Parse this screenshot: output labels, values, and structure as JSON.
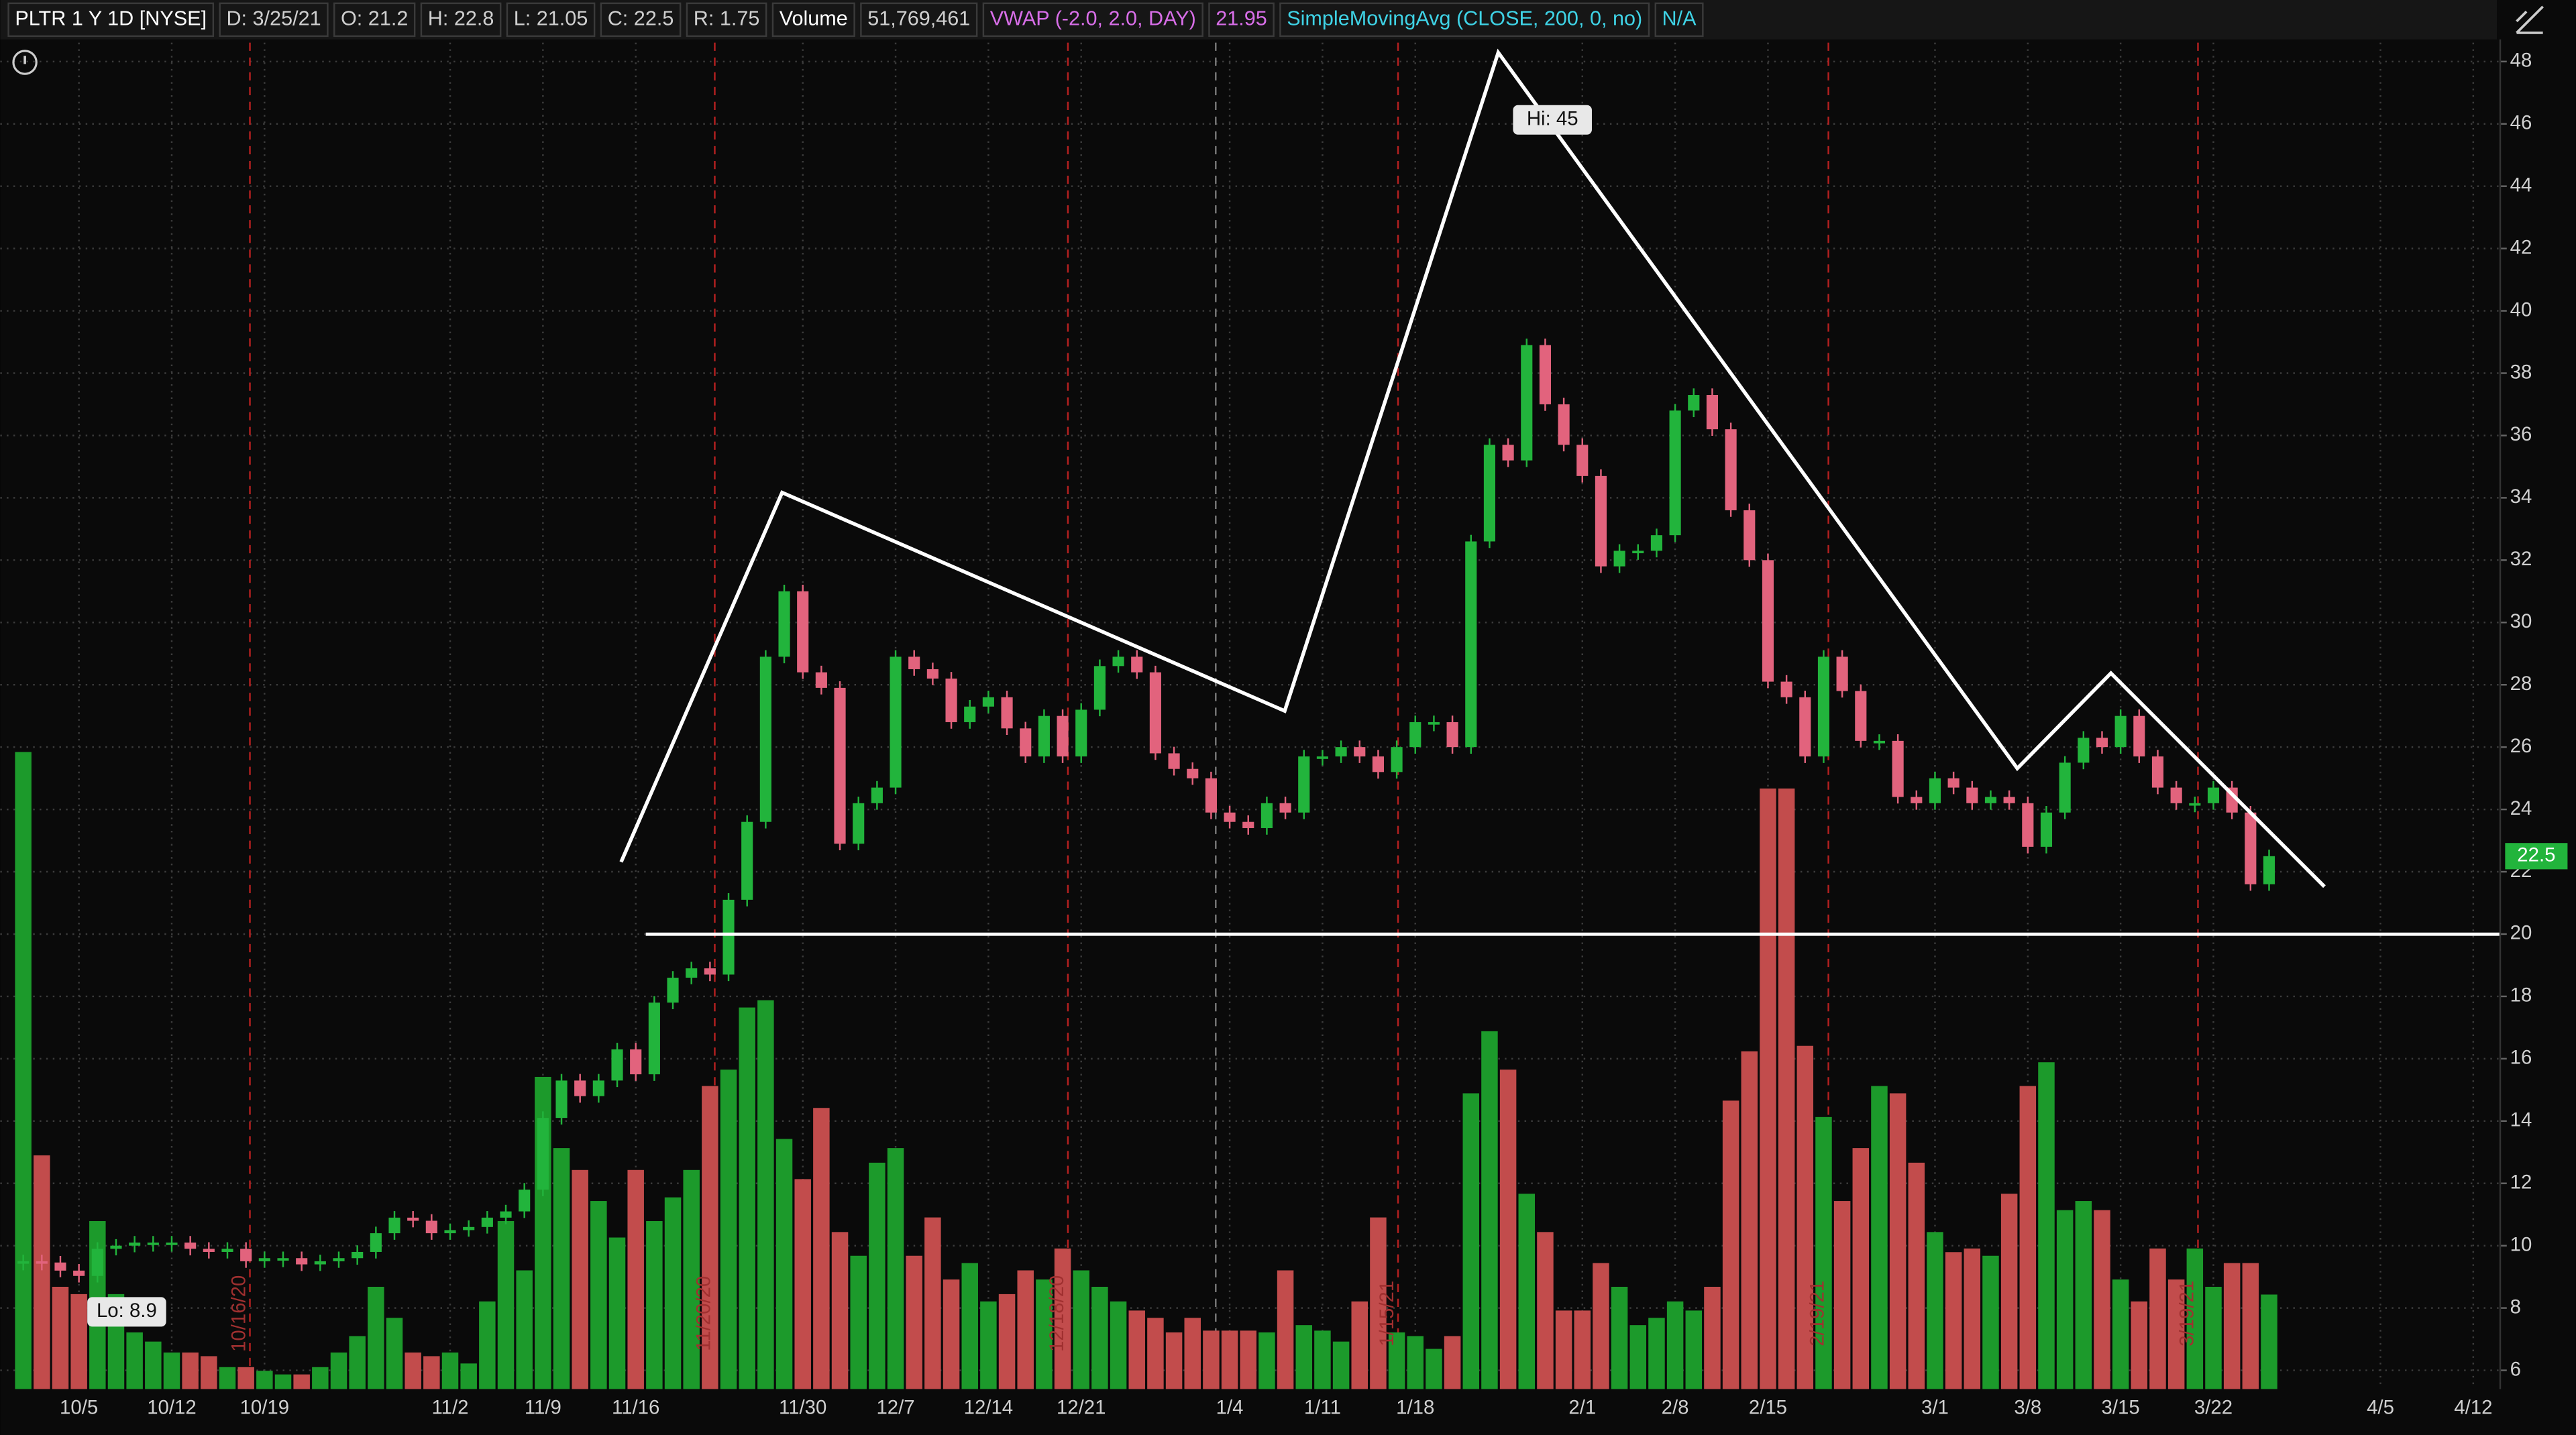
{
  "header": [
    {
      "text": "PLTR 1 Y 1D [NYSE]",
      "color": "#ffffff"
    },
    {
      "text": "D: 3/25/21",
      "color": "#cfcfcf"
    },
    {
      "text": "O: 21.2",
      "color": "#cfcfcf"
    },
    {
      "text": "H: 22.8",
      "color": "#cfcfcf"
    },
    {
      "text": "L: 21.05",
      "color": "#cfcfcf"
    },
    {
      "text": "C: 22.5",
      "color": "#cfcfcf"
    },
    {
      "text": "R: 1.75",
      "color": "#cfcfcf"
    },
    {
      "text": "Volume",
      "color": "#ffffff"
    },
    {
      "text": "51,769,461",
      "color": "#cfcfcf"
    },
    {
      "text": "VWAP (-2.0, 2.0, DAY)",
      "color": "#d86ee8"
    },
    {
      "text": "21.95",
      "color": "#d86ee8"
    },
    {
      "text": "SimpleMovingAvg (CLOSE, 200, 0, no)",
      "color": "#3fd3e6"
    },
    {
      "text": "N/A",
      "color": "#3fd3e6"
    }
  ],
  "chart_data": {
    "type": "candlestick",
    "categories": [
      null,
      null,
      null,
      "10/5",
      null,
      null,
      null,
      null,
      "10/12",
      null,
      null,
      null,
      null,
      "10/19",
      null,
      null,
      null,
      null,
      null,
      null,
      null,
      null,
      null,
      "11/2",
      null,
      null,
      null,
      null,
      "11/9",
      null,
      null,
      null,
      null,
      "11/16",
      null,
      null,
      null,
      null,
      null,
      null,
      null,
      null,
      "11/30",
      null,
      null,
      null,
      null,
      "12/7",
      null,
      null,
      null,
      null,
      "12/14",
      null,
      null,
      null,
      null,
      "12/21",
      null,
      null,
      null,
      null,
      null,
      null,
      null,
      "1/4",
      null,
      null,
      null,
      null,
      "1/11",
      null,
      null,
      null,
      null,
      "1/18",
      null,
      null,
      null,
      null,
      null,
      null,
      null,
      null,
      "2/1",
      null,
      null,
      null,
      null,
      "2/8",
      null,
      null,
      null,
      null,
      "2/15",
      null,
      null,
      null,
      null,
      null,
      null,
      null,
      null,
      "3/1",
      null,
      null,
      null,
      null,
      "3/8",
      null,
      null,
      null,
      null,
      "3/15",
      null,
      null,
      null,
      null,
      "3/22",
      null,
      null,
      null,
      null,
      null,
      null,
      null,
      null,
      "4/5",
      null,
      null,
      null,
      null,
      "4/12"
    ],
    "close": [
      9.5,
      9.46,
      9.2,
      9.03,
      9.9,
      10.0,
      10.1,
      10.1,
      10.1,
      9.9,
      9.8,
      9.9,
      9.5,
      9.6,
      9.6,
      9.4,
      9.5,
      9.6,
      9.8,
      10.4,
      10.9,
      10.8,
      10.4,
      10.5,
      10.6,
      10.9,
      11.1,
      11.8,
      14.1,
      15.3,
      14.8,
      15.3,
      16.3,
      15.5,
      17.8,
      18.6,
      18.9,
      18.7,
      21.1,
      23.6,
      28.9,
      31.0,
      28.4,
      27.9,
      22.9,
      24.2,
      24.7,
      28.9,
      28.5,
      28.2,
      26.8,
      27.3,
      27.6,
      26.6,
      25.7,
      27.0,
      25.7,
      27.2,
      28.6,
      28.9,
      28.4,
      25.8,
      25.3,
      25.0,
      23.9,
      23.6,
      23.4,
      24.2,
      23.9,
      25.7,
      25.7,
      26.0,
      25.7,
      25.2,
      26.0,
      26.8,
      26.8,
      26.0,
      32.6,
      35.7,
      35.2,
      38.9,
      37.0,
      35.7,
      34.7,
      31.8,
      32.3,
      32.3,
      32.8,
      36.8,
      37.3,
      36.2,
      33.6,
      32.0,
      28.1,
      27.6,
      25.7,
      28.9,
      27.8,
      26.2,
      26.2,
      24.4,
      24.2,
      25.0,
      24.7,
      24.2,
      24.4,
      24.2,
      22.8,
      23.9,
      25.5,
      26.3,
      26.0,
      27.0,
      25.7,
      24.7,
      24.2,
      24.2,
      24.7,
      23.9,
      21.6,
      22.5,
      null,
      null,
      null,
      null,
      null,
      null,
      null,
      null,
      null,
      null,
      null
    ],
    "volume": [
      349000000,
      128000000,
      56000000,
      52000000,
      92000000,
      52000000,
      31000000,
      26000000,
      20000000,
      20000000,
      18000000,
      12000000,
      12000000,
      10000000,
      8000000,
      8000000,
      12000000,
      20000000,
      29000000,
      56000000,
      39000000,
      20000000,
      18000000,
      20000000,
      14000000,
      48000000,
      92000000,
      65000000,
      171000000,
      132000000,
      120000000,
      103000000,
      83000000,
      120000000,
      92000000,
      105000000,
      120000000,
      166000000,
      175000000,
      209000000,
      213000000,
      137000000,
      115000000,
      154000000,
      86000000,
      73000000,
      124000000,
      132000000,
      73000000,
      94000000,
      60000000,
      69000000,
      48000000,
      52000000,
      65000000,
      60000000,
      77000000,
      65000000,
      56000000,
      48000000,
      43000000,
      39000000,
      31000000,
      39000000,
      32000000,
      32000000,
      32000000,
      31000000,
      65000000,
      35000000,
      32000000,
      26000000,
      48000000,
      94000000,
      31000000,
      29000000,
      22000000,
      29000000,
      162000000,
      196000000,
      175000000,
      107000000,
      86000000,
      43000000,
      43000000,
      69000000,
      56000000,
      35000000,
      39000000,
      48000000,
      43000000,
      56000000,
      158000000,
      185000000,
      329000000,
      329000000,
      188000000,
      149000000,
      103000000,
      132000000,
      166000000,
      162000000,
      124000000,
      86000000,
      75000000,
      77000000,
      73000000,
      107000000,
      166000000,
      179000000,
      98000000,
      103000000,
      98000000,
      60000000,
      48000000,
      77000000,
      60000000,
      77000000,
      56000000,
      69000000,
      69000000,
      51769461,
      null,
      null,
      null,
      null,
      null,
      null,
      null,
      null,
      null,
      null,
      null
    ],
    "up_color": "#22b43c",
    "down_color": "#e2637d",
    "volume_up_color": "#1c9a2b",
    "volume_down_color": "#c24c4c",
    "ylim": [
      5.4,
      48.5
    ],
    "yticks": [
      6,
      8,
      10,
      12,
      14,
      16,
      18,
      20,
      22,
      24,
      26,
      28,
      30,
      32,
      34,
      36,
      38,
      40,
      42,
      44,
      46,
      48
    ],
    "grid": true,
    "annotations": [
      "Hi: 45",
      "Lo: 8.9"
    ],
    "last_price_label": "22.5",
    "expiration_labels": [
      "10/16/20",
      "11/20/20",
      "12/18/20",
      "1/15/21",
      "2/19/21",
      "3/19/21"
    ]
  }
}
